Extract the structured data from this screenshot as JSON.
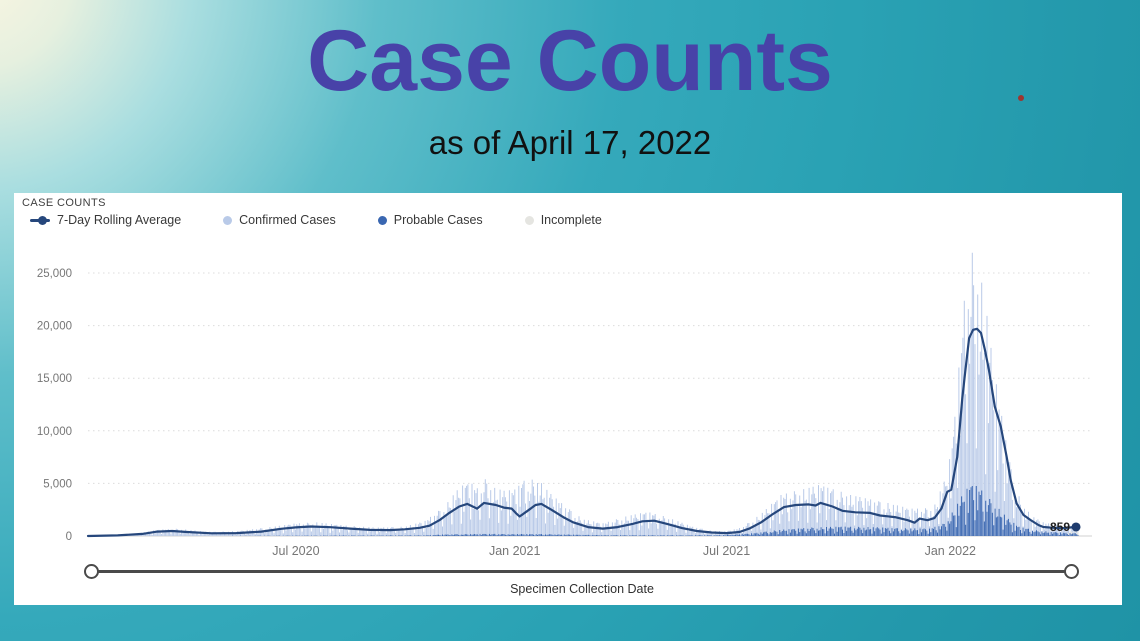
{
  "slide": {
    "title": "Case Counts",
    "subtitle": "as of April 17, 2022",
    "colors": {
      "background_teal": "#2AA2B4",
      "background_corner": "#FBF6E2",
      "title": "#4842A8",
      "subtitle": "#111111",
      "laser_dot": "#9E3530"
    }
  },
  "panel": {
    "title": "CASE COUNTS",
    "legend": [
      {
        "label": "7-Day Rolling Average",
        "marker": "line-dot",
        "color": "#26477C"
      },
      {
        "label": "Confirmed Cases",
        "marker": "dot",
        "color": "#B9CAE8"
      },
      {
        "label": "Probable Cases",
        "marker": "dot",
        "color": "#3A67B1"
      },
      {
        "label": "Incomplete",
        "marker": "dot",
        "color": "#E5E5E1"
      }
    ],
    "x_axis_title": "Specimen Collection Date",
    "slider": {
      "type": "date-range",
      "handles": [
        "start",
        "end"
      ]
    }
  },
  "chart_data": {
    "type": "mixed",
    "title": "CASE COUNTS",
    "xlabel": "Specimen Collection Date",
    "ylabel": "",
    "ylim": [
      0,
      27000
    ],
    "grid": "dotted-horizontal",
    "legend_position": "top-left",
    "y_ticks": [
      {
        "value": 0,
        "label": "0"
      },
      {
        "value": 5000,
        "label": "5,000"
      },
      {
        "value": 10000,
        "label": "10,000"
      },
      {
        "value": 15000,
        "label": "15,000"
      },
      {
        "value": 20000,
        "label": "20,000"
      },
      {
        "value": 25000,
        "label": "25,000"
      }
    ],
    "x_ticks": [
      {
        "f": 0.21,
        "label": "Jul 2020"
      },
      {
        "f": 0.431,
        "label": "Jan 2021"
      },
      {
        "f": 0.645,
        "label": "Jul 2021"
      },
      {
        "f": 0.871,
        "label": "Jan 2022"
      }
    ],
    "x_range_note": "x positions are fractions of axis from ~Jan 2020 to Apr 17 2022; values approximate, read from chart",
    "weekly_pattern": [
      0.95,
      0.55,
      0.82,
      1.0,
      0.88,
      0.68,
      0.3
    ],
    "series": [
      {
        "name": "7-Day Rolling Average",
        "type": "line",
        "color": "#26477C",
        "end_label": "859",
        "end_value": 859,
        "points": [
          [
            0.0,
            0
          ],
          [
            0.03,
            60
          ],
          [
            0.055,
            200
          ],
          [
            0.07,
            420
          ],
          [
            0.085,
            480
          ],
          [
            0.1,
            380
          ],
          [
            0.125,
            260
          ],
          [
            0.15,
            280
          ],
          [
            0.175,
            420
          ],
          [
            0.195,
            680
          ],
          [
            0.21,
            820
          ],
          [
            0.225,
            900
          ],
          [
            0.245,
            840
          ],
          [
            0.265,
            700
          ],
          [
            0.285,
            580
          ],
          [
            0.305,
            560
          ],
          [
            0.32,
            640
          ],
          [
            0.335,
            780
          ],
          [
            0.345,
            980
          ],
          [
            0.355,
            1500
          ],
          [
            0.365,
            2200
          ],
          [
            0.375,
            2800
          ],
          [
            0.383,
            3050
          ],
          [
            0.393,
            2600
          ],
          [
            0.4,
            3150
          ],
          [
            0.412,
            2950
          ],
          [
            0.42,
            2700
          ],
          [
            0.428,
            2600
          ],
          [
            0.432,
            2200
          ],
          [
            0.436,
            1850
          ],
          [
            0.444,
            2400
          ],
          [
            0.452,
            2950
          ],
          [
            0.458,
            3050
          ],
          [
            0.468,
            2500
          ],
          [
            0.48,
            1800
          ],
          [
            0.49,
            1300
          ],
          [
            0.505,
            850
          ],
          [
            0.52,
            700
          ],
          [
            0.535,
            850
          ],
          [
            0.55,
            1150
          ],
          [
            0.56,
            1400
          ],
          [
            0.572,
            1450
          ],
          [
            0.585,
            1150
          ],
          [
            0.6,
            750
          ],
          [
            0.615,
            480
          ],
          [
            0.63,
            330
          ],
          [
            0.645,
            280
          ],
          [
            0.658,
            380
          ],
          [
            0.668,
            700
          ],
          [
            0.68,
            1300
          ],
          [
            0.692,
            2100
          ],
          [
            0.703,
            2750
          ],
          [
            0.715,
            2950
          ],
          [
            0.728,
            3000
          ],
          [
            0.735,
            2900
          ],
          [
            0.74,
            3150
          ],
          [
            0.752,
            2800
          ],
          [
            0.762,
            2400
          ],
          [
            0.775,
            2250
          ],
          [
            0.79,
            2200
          ],
          [
            0.8,
            1950
          ],
          [
            0.815,
            1800
          ],
          [
            0.828,
            1500
          ],
          [
            0.835,
            1260
          ],
          [
            0.84,
            1650
          ],
          [
            0.848,
            1500
          ],
          [
            0.855,
            1700
          ],
          [
            0.862,
            2600
          ],
          [
            0.868,
            4200
          ],
          [
            0.872,
            4400
          ],
          [
            0.878,
            7500
          ],
          [
            0.883,
            13000
          ],
          [
            0.886,
            15500
          ],
          [
            0.89,
            18800
          ],
          [
            0.894,
            19600
          ],
          [
            0.898,
            19700
          ],
          [
            0.902,
            19300
          ],
          [
            0.906,
            17700
          ],
          [
            0.91,
            15800
          ],
          [
            0.916,
            12300
          ],
          [
            0.922,
            10400
          ],
          [
            0.928,
            7500
          ],
          [
            0.932,
            5300
          ],
          [
            0.938,
            3100
          ],
          [
            0.945,
            2000
          ],
          [
            0.952,
            1520
          ],
          [
            0.96,
            1050
          ],
          [
            0.965,
            860
          ],
          [
            0.975,
            780
          ],
          [
            0.985,
            750
          ],
          [
            0.993,
            820
          ],
          [
            0.998,
            859
          ]
        ]
      },
      {
        "name": "Confirmed Cases",
        "type": "daily-bars",
        "color": "#B9CAE8",
        "envelope": [
          [
            0.0,
            0
          ],
          [
            0.05,
            250
          ],
          [
            0.07,
            600
          ],
          [
            0.09,
            700
          ],
          [
            0.12,
            400
          ],
          [
            0.15,
            450
          ],
          [
            0.18,
            800
          ],
          [
            0.21,
            1200
          ],
          [
            0.23,
            1300
          ],
          [
            0.26,
            1000
          ],
          [
            0.29,
            800
          ],
          [
            0.32,
            900
          ],
          [
            0.34,
            1400
          ],
          [
            0.36,
            2800
          ],
          [
            0.375,
            4600
          ],
          [
            0.385,
            5200
          ],
          [
            0.395,
            4400
          ],
          [
            0.402,
            5500
          ],
          [
            0.41,
            4600
          ],
          [
            0.42,
            4300
          ],
          [
            0.43,
            4400
          ],
          [
            0.44,
            5300
          ],
          [
            0.455,
            5400
          ],
          [
            0.465,
            4200
          ],
          [
            0.48,
            3000
          ],
          [
            0.5,
            1600
          ],
          [
            0.52,
            1200
          ],
          [
            0.545,
            1900
          ],
          [
            0.565,
            2300
          ],
          [
            0.585,
            1800
          ],
          [
            0.61,
            900
          ],
          [
            0.63,
            500
          ],
          [
            0.645,
            450
          ],
          [
            0.66,
            800
          ],
          [
            0.68,
            2100
          ],
          [
            0.7,
            3900
          ],
          [
            0.715,
            4300
          ],
          [
            0.73,
            4600
          ],
          [
            0.74,
            4900
          ],
          [
            0.755,
            4400
          ],
          [
            0.77,
            3900
          ],
          [
            0.79,
            3500
          ],
          [
            0.81,
            3100
          ],
          [
            0.83,
            2600
          ],
          [
            0.845,
            2600
          ],
          [
            0.855,
            2900
          ],
          [
            0.865,
            5200
          ],
          [
            0.872,
            8000
          ],
          [
            0.878,
            14000
          ],
          [
            0.884,
            21000
          ],
          [
            0.888,
            26000
          ],
          [
            0.893,
            27000
          ],
          [
            0.898,
            25500
          ],
          [
            0.903,
            24000
          ],
          [
            0.908,
            21000
          ],
          [
            0.914,
            16500
          ],
          [
            0.92,
            13000
          ],
          [
            0.928,
            9000
          ],
          [
            0.935,
            5000
          ],
          [
            0.945,
            2800
          ],
          [
            0.955,
            1800
          ],
          [
            0.965,
            1300
          ],
          [
            0.975,
            1100
          ],
          [
            0.985,
            1000
          ],
          [
            1.0,
            900
          ]
        ]
      },
      {
        "name": "Probable Cases",
        "type": "daily-bars",
        "color": "#3A67B1",
        "envelope": [
          [
            0.0,
            0
          ],
          [
            0.34,
            60
          ],
          [
            0.36,
            150
          ],
          [
            0.4,
            200
          ],
          [
            0.46,
            180
          ],
          [
            0.52,
            80
          ],
          [
            0.6,
            60
          ],
          [
            0.64,
            80
          ],
          [
            0.67,
            250
          ],
          [
            0.7,
            600
          ],
          [
            0.73,
            800
          ],
          [
            0.76,
            900
          ],
          [
            0.79,
            850
          ],
          [
            0.82,
            750
          ],
          [
            0.85,
            700
          ],
          [
            0.865,
            1200
          ],
          [
            0.875,
            2500
          ],
          [
            0.885,
            4200
          ],
          [
            0.893,
            5000
          ],
          [
            0.9,
            4600
          ],
          [
            0.91,
            3600
          ],
          [
            0.92,
            2600
          ],
          [
            0.93,
            1600
          ],
          [
            0.94,
            900
          ],
          [
            0.96,
            500
          ],
          [
            0.98,
            350
          ],
          [
            1.0,
            250
          ]
        ]
      },
      {
        "name": "Incomplete",
        "type": "daily-bars",
        "color": "#E5E5E1",
        "envelope": [
          [
            0.0,
            0
          ],
          [
            0.988,
            0
          ],
          [
            0.992,
            450
          ],
          [
            1.0,
            550
          ]
        ]
      }
    ]
  }
}
